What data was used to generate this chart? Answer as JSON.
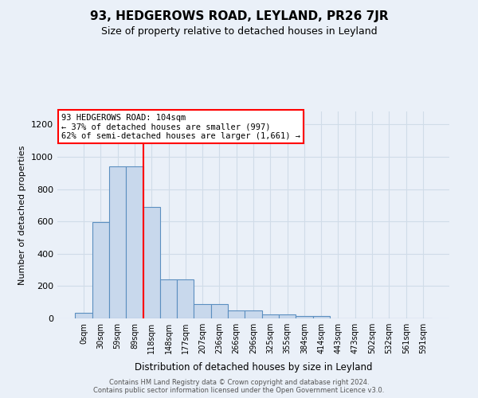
{
  "title": "93, HEDGEROWS ROAD, LEYLAND, PR26 7JR",
  "subtitle": "Size of property relative to detached houses in Leyland",
  "xlabel": "Distribution of detached houses by size in Leyland",
  "ylabel": "Number of detached properties",
  "bar_labels": [
    "0sqm",
    "30sqm",
    "59sqm",
    "89sqm",
    "118sqm",
    "148sqm",
    "177sqm",
    "207sqm",
    "236sqm",
    "266sqm",
    "296sqm",
    "325sqm",
    "355sqm",
    "384sqm",
    "414sqm",
    "443sqm",
    "473sqm",
    "502sqm",
    "532sqm",
    "561sqm",
    "591sqm"
  ],
  "bar_heights": [
    35,
    595,
    940,
    940,
    690,
    240,
    240,
    90,
    90,
    50,
    50,
    25,
    25,
    15,
    15,
    0,
    0,
    0,
    0,
    0,
    0
  ],
  "bar_color": "#c8d8ec",
  "bar_edge_color": "#5b8fc0",
  "ylim": [
    0,
    1280
  ],
  "yticks": [
    0,
    200,
    400,
    600,
    800,
    1000,
    1200
  ],
  "property_line_x": 3.5,
  "annotation_text": "93 HEDGEROWS ROAD: 104sqm\n← 37% of detached houses are smaller (997)\n62% of semi-detached houses are larger (1,661) →",
  "footer_line1": "Contains HM Land Registry data © Crown copyright and database right 2024.",
  "footer_line2": "Contains public sector information licensed under the Open Government Licence v3.0.",
  "bg_color": "#eaf0f8",
  "grid_color": "#d0dce8"
}
